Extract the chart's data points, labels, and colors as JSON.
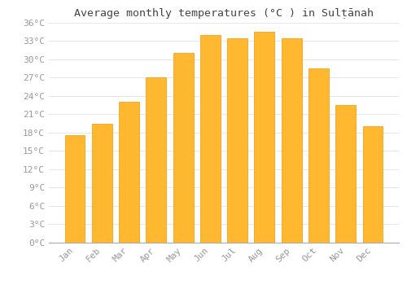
{
  "title": "Average monthly temperatures (°C ) in Sulṭānah",
  "months": [
    "Jan",
    "Feb",
    "Mar",
    "Apr",
    "May",
    "Jun",
    "Jul",
    "Aug",
    "Sep",
    "Oct",
    "Nov",
    "Dec"
  ],
  "values": [
    17.5,
    19.5,
    23.0,
    27.0,
    31.0,
    34.0,
    33.5,
    34.5,
    33.5,
    28.5,
    22.5,
    19.0
  ],
  "bar_color_light": "#FFB830",
  "bar_color_dark": "#F59500",
  "background_color": "#FFFFFF",
  "grid_color": "#DDDDDD",
  "text_color": "#999999",
  "title_color": "#444444",
  "ylim": [
    0,
    36
  ],
  "yticks": [
    0,
    3,
    6,
    9,
    12,
    15,
    18,
    21,
    24,
    27,
    30,
    33,
    36
  ],
  "title_fontsize": 9.5,
  "tick_fontsize": 8,
  "bar_width": 0.75
}
